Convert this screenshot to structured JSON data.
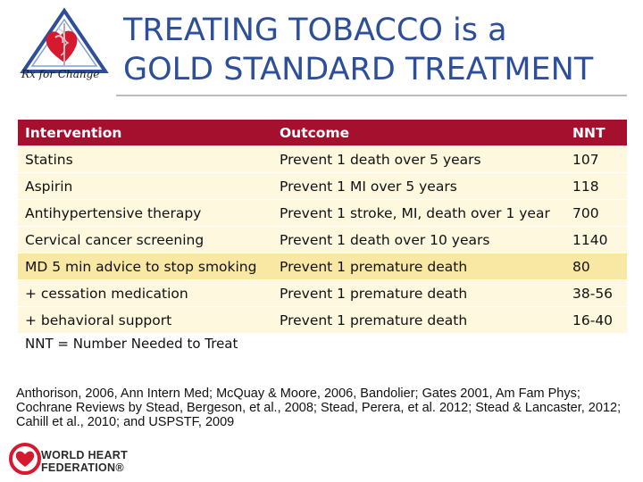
{
  "logo": {
    "tagline": "Rx for Change"
  },
  "title": {
    "line1": "TREATING TOBACCO is a",
    "line2": "GOLD STANDARD TREATMENT"
  },
  "table": {
    "headers": [
      "Intervention",
      "Outcome",
      "NNT"
    ],
    "rows": [
      [
        "Statins",
        "Prevent 1 death over 5 years",
        "107"
      ],
      [
        "Aspirin",
        "Prevent 1 MI over 5 years",
        "118"
      ],
      [
        "Antihypertensive therapy",
        "Prevent 1 stroke, MI, death over 1 year",
        "700"
      ],
      [
        "Cervical cancer screening",
        "Prevent 1 death over 10 years",
        "1140"
      ],
      [
        "MD 5 min advice to stop smoking",
        "Prevent 1 premature death",
        "80"
      ],
      [
        "+ cessation medication",
        "Prevent 1 premature death",
        "38-56"
      ],
      [
        "+ behavioral support",
        "Prevent 1 premature death",
        "16-40"
      ]
    ],
    "header_color": "#a4102e",
    "row_color": "#fdf8de",
    "highlight_color": "#f9e7a4"
  },
  "note": "NNT = Number Needed to Treat",
  "references": "Anthorison, 2006, Ann Intern Med; McQuay & Moore, 2006, Bandolier; Gates 2001, Am Fam Phys; Cochrane Reviews by Stead, Bergeson, et al., 2008; Stead, Perera, et al. 2012; Stead & Lancaster, 2012; Cahill et al., 2010; and USPSTF, 2009",
  "footer_logo": {
    "line1": "WORLD HEART",
    "line2": "FEDERATION®"
  },
  "colors": {
    "title": "#2d4f9a",
    "heart": "#d6192f"
  }
}
